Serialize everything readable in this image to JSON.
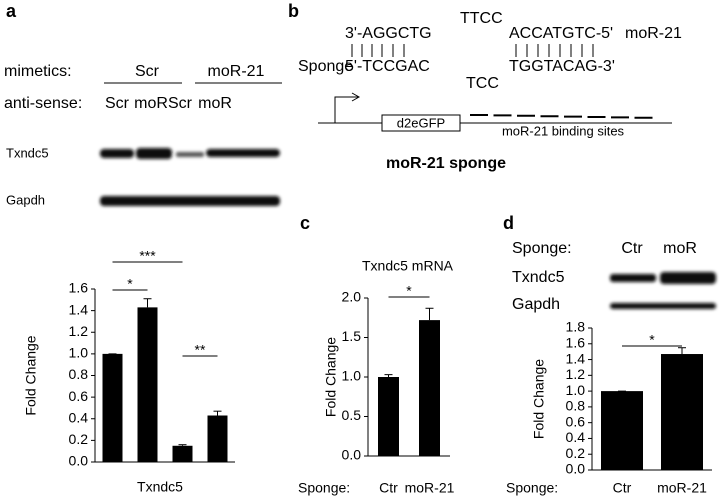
{
  "panel_labels": [
    "a",
    "b",
    "c",
    "d"
  ],
  "blot_a": {
    "mimetics_label": "mimetics:",
    "groups": [
      "Scr",
      "moR-21"
    ],
    "antisense_label": "anti-sense:",
    "lanes": [
      "Scr",
      "moR",
      "Scr",
      "moR"
    ],
    "rows": [
      "Txndc5",
      "Gapdh"
    ]
  },
  "sponge_diagram": {
    "top_left": "3'-AGGCTG",
    "top_loop": "TTCC",
    "top_right": "ACCATGTC-5'",
    "mirna": "moR-21",
    "sponge_label": "Sponge",
    "bottom_left": "5'-TCCGAC",
    "bottom_loop": "TCC",
    "bottom_right": "TGGTACAG-3'",
    "reporter": "d2eGFP",
    "sites": "moR-21 binding sites",
    "caption": "moR-21 sponge"
  },
  "blot_d": {
    "sponge_label": "Sponge:",
    "lanes": [
      "Ctr",
      "moR"
    ],
    "rows": [
      "Txndc5",
      "Gapdh"
    ]
  },
  "chart_data": [
    {
      "type": "bar",
      "ylabel": "Fold Change",
      "xlabel": "Txndc5",
      "color": "#000000",
      "categories": [
        null,
        null,
        null,
        null
      ],
      "values": [
        1.0,
        1.43,
        0.15,
        0.43
      ],
      "errors": [
        0,
        0.08,
        0.01,
        0.04
      ],
      "ylim": [
        0,
        1.6
      ],
      "yticks": [
        {
          "value": 0,
          "label": "0.0"
        },
        {
          "value": 0.2,
          "label": "0.2"
        },
        {
          "value": 0.4,
          "label": "0.4"
        },
        {
          "value": 0.6,
          "label": "0.6"
        },
        {
          "value": 0.8,
          "label": "0.8"
        },
        {
          "value": 1,
          "label": "1.0"
        },
        {
          "value": 1.2,
          "label": "1.2"
        },
        {
          "value": 1.4,
          "label": "1.4"
        },
        {
          "value": 1.6,
          "label": "1.6"
        }
      ],
      "brackets": [
        {
          "label": "*",
          "categories": [
            0,
            1
          ]
        },
        {
          "label": "***",
          "categories": [
            0,
            2
          ]
        },
        {
          "label": "**",
          "categories": [
            2,
            3
          ]
        }
      ]
    },
    {
      "type": "bar",
      "title": "Txndc5 mRNA",
      "ylabel": "Fold Change",
      "xlabel": "Sponge:",
      "color": "#000000",
      "categories": [
        "Ctr",
        "moR-21"
      ],
      "values": [
        1.0,
        1.72
      ],
      "errors": [
        0.03,
        0.15
      ],
      "ylim": [
        0,
        2.0
      ],
      "yticks": [
        {
          "value": 0,
          "label": "0.0"
        },
        {
          "value": 0.5,
          "label": "0.5"
        },
        {
          "value": 1,
          "label": "1.0"
        },
        {
          "value": 1.5,
          "label": "1.5"
        },
        {
          "value": 2,
          "label": "2.0"
        }
      ],
      "brackets": [
        {
          "label": "*",
          "categories": [
            0,
            1
          ]
        }
      ]
    },
    {
      "type": "bar",
      "ylabel": "Fold Change",
      "xlabel": "Sponge:",
      "color": "#000000",
      "categories": [
        "Ctr",
        "moR-21"
      ],
      "values": [
        1.0,
        1.47
      ],
      "errors": [
        0,
        0.08
      ],
      "ylim": [
        0,
        1.8
      ],
      "yticks": [
        {
          "value": 0,
          "label": "0.0"
        },
        {
          "value": 0.2,
          "label": "0.2"
        },
        {
          "value": 0.4,
          "label": "0.4"
        },
        {
          "value": 0.6,
          "label": "0.6"
        },
        {
          "value": 0.8,
          "label": "0.8"
        },
        {
          "value": 1,
          "label": "1.0"
        },
        {
          "value": 1.2,
          "label": "1.2"
        },
        {
          "value": 1.4,
          "label": "1.4"
        },
        {
          "value": 1.6,
          "label": "1.6"
        },
        {
          "value": 1.8,
          "label": "1.8"
        }
      ],
      "brackets": [
        {
          "label": "*",
          "categories": [
            0,
            1
          ]
        }
      ]
    }
  ]
}
